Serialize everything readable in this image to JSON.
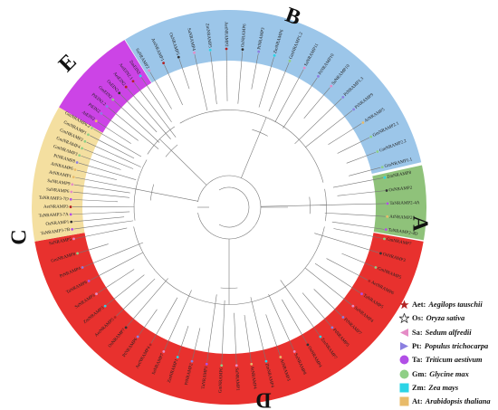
{
  "clades": [
    {
      "id": "A",
      "label": "A",
      "color": "#8fc27a",
      "leaves": [
        "ZmNRAMP8",
        "OsNRAMP2",
        "TaNRAMP2-4A",
        "AtNRAMP2",
        "TaNRAMP2-4D"
      ]
    },
    {
      "id": "D",
      "label": "D",
      "color": "#e8312e",
      "leaves": [
        "GmNRAMP7",
        "OsNRAMP3",
        "GmNRAMP5",
        "AetNRAMP6",
        "TaNRAMP5",
        "SaNRAMP4",
        "PtNRAMP7",
        "PtNRAMP5",
        "ZmNRAMP7",
        "OsNRAMP4",
        "SaNRAMP8",
        "AtNRAMP3",
        "ZmNRAMP4",
        "AtNRAMP4",
        "SaNRAMP1",
        "GmNRAMP6",
        "TaNRAMP1",
        "PtNRAMP2",
        "ZmNRAMP1",
        "SaNRAMP7",
        "AetNRAMP4",
        "PtNRAMP6",
        "OsNRAMP7",
        "AetNRAMP5",
        "ZmNRAMP3",
        "SaNRAMP3",
        "TaNRAMP6",
        "PtNRAMP4",
        "GmNRAMP8",
        "SaNRAMP5"
      ]
    },
    {
      "id": "C",
      "label": "C",
      "color": "#f4dfa0",
      "leaves": [
        "TaNRAMP3-7B",
        "OsNRAMP1",
        "TaNRAMP3-7A",
        "AetNRAMP3",
        "TaNRAMP3-7D",
        "SaNRAMP6",
        "SaNRAMP9",
        "AtNRAMP1",
        "AtNRAMP6",
        "PtNRAMP8",
        "GmNRAMP3",
        "GmNRAMP4",
        "GmNRAMP2",
        "GmNRAMP1",
        "GmNRAMP6.2"
      ]
    },
    {
      "id": "E",
      "label": "E",
      "color": "#cc44e6",
      "leaves": [
        "AtEIN2",
        "PtEIN2",
        "PtEIN2.2",
        "GmEIN2",
        "OsEIN2",
        "AetEIN2",
        "AetEIN2.1",
        "ZmEIN2"
      ]
    },
    {
      "id": "B",
      "label": "B",
      "color": "#9cc6e9",
      "leaves": [
        "SaNRAMP2",
        "AetNRAMP1",
        "OsNRAMP5",
        "SaNRAMP4",
        "ZmNRAMP5",
        "AetNRAMP2",
        "OsNRAMP6",
        "PtNRAMP3",
        "ZmNRAMP6",
        "GmNRAMP1.2",
        "SaNRAMP11",
        "PtNRAMP10",
        "SaNRAMP10",
        "PtNRAMP1.3",
        "PtNRAMP9",
        "AtNRAMP5",
        "GmNRAMP2.1",
        "GmNRAMP2.2",
        "GmNRAMP1.1"
      ]
    }
  ],
  "legend": [
    {
      "abbr": "Aet:",
      "species": "Aegilops tauschii",
      "marker": "star",
      "color": "#b22222"
    },
    {
      "abbr": "Os:",
      "species": "Oryza sativa",
      "marker": "star-outline",
      "color": "#333333"
    },
    {
      "abbr": "Sa:",
      "species": "Sedum alfredii",
      "marker": "triangle-left",
      "color": "#e58cc6"
    },
    {
      "abbr": "Pt:",
      "species": "Populus trichocarpa",
      "marker": "triangle-right",
      "color": "#8b7fe0"
    },
    {
      "abbr": "Ta:",
      "species": "Triticum aestivum",
      "marker": "circle",
      "color": "#b14fe6"
    },
    {
      "abbr": "Gm:",
      "species": "Glycine max",
      "marker": "circle",
      "color": "#8fcf86"
    },
    {
      "abbr": "Zm:",
      "species": "Zea mays",
      "marker": "square",
      "color": "#2bd4e6"
    },
    {
      "abbr": "At:",
      "species": "Arabidopsis thaliana",
      "marker": "square",
      "color": "#e8bb6a"
    }
  ]
}
